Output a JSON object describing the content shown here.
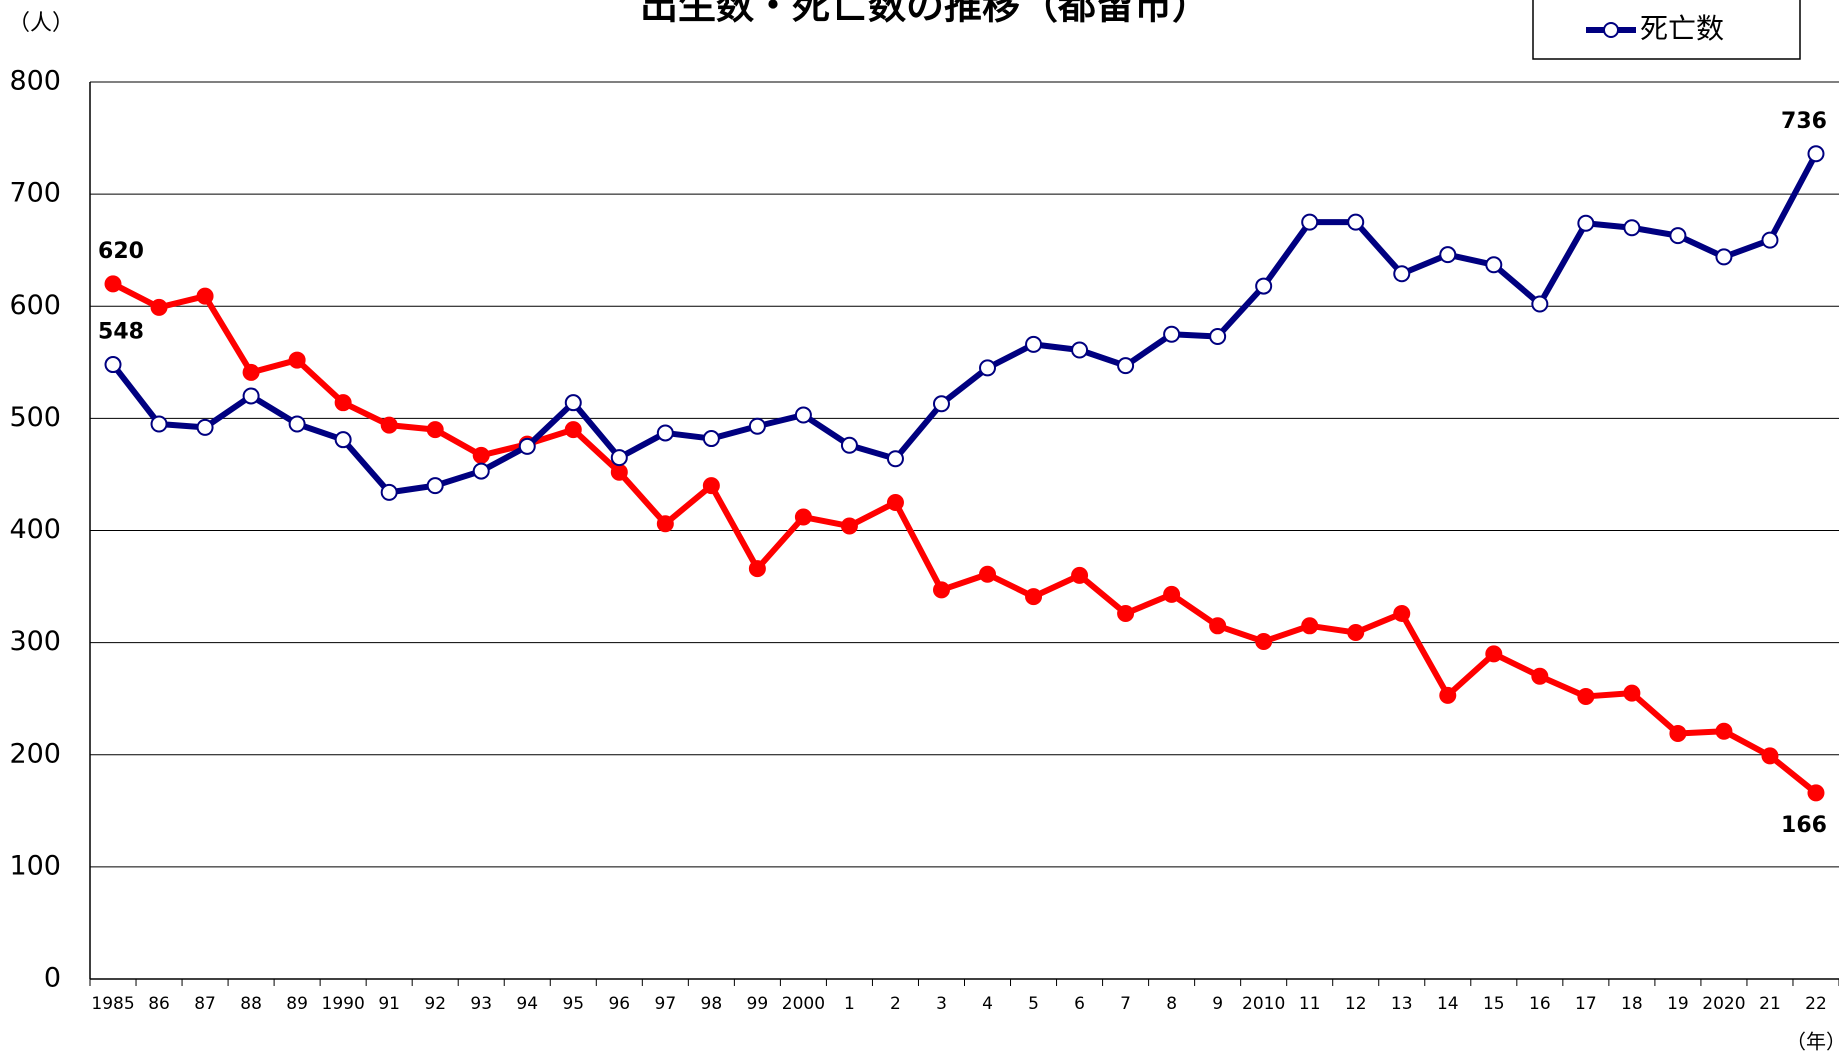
{
  "chart_data": {
    "type": "line",
    "title": "出生数・死亡数の推移（都留市）",
    "y_label": "（人）",
    "x_label": "（年）",
    "categories": [
      "1985",
      "86",
      "87",
      "88",
      "89",
      "1990",
      "91",
      "92",
      "93",
      "94",
      "95",
      "96",
      "97",
      "98",
      "99",
      "2000",
      "1",
      "2",
      "3",
      "4",
      "5",
      "6",
      "7",
      "8",
      "9",
      "2010",
      "11",
      "12",
      "13",
      "14",
      "15",
      "16",
      "17",
      "18",
      "19",
      "2020",
      "21",
      "22"
    ],
    "series": [
      {
        "name": "出生数",
        "color": "#ff0000",
        "marker_fill": "#ff0000",
        "values": [
          620,
          599,
          609,
          541,
          552,
          514,
          494,
          490,
          467,
          477,
          490,
          452,
          406,
          440,
          366,
          412,
          404,
          425,
          347,
          361,
          341,
          360,
          326,
          343,
          315,
          301,
          315,
          309,
          326,
          253,
          290,
          270,
          252,
          255,
          219,
          221,
          199,
          166
        ],
        "value_labels": [
          "620",
          null,
          null,
          null,
          null,
          null,
          null,
          null,
          null,
          null,
          null,
          null,
          null,
          null,
          null,
          null,
          null,
          null,
          null,
          null,
          null,
          null,
          null,
          null,
          null,
          null,
          null,
          null,
          null,
          null,
          null,
          null,
          null,
          null,
          null,
          null,
          null,
          "166"
        ]
      },
      {
        "name": "死亡数",
        "color": "#000080",
        "marker_fill": "#ffffff",
        "values": [
          548,
          495,
          492,
          520,
          495,
          481,
          434,
          440,
          453,
          475,
          514,
          465,
          487,
          482,
          493,
          503,
          476,
          464,
          513,
          545,
          566,
          561,
          547,
          575,
          573,
          618,
          675,
          675,
          629,
          646,
          637,
          602,
          674,
          670,
          663,
          644,
          659,
          736
        ],
        "value_labels": [
          "548",
          null,
          null,
          null,
          null,
          null,
          null,
          null,
          null,
          null,
          null,
          null,
          null,
          null,
          null,
          null,
          null,
          null,
          null,
          null,
          null,
          null,
          null,
          null,
          null,
          null,
          null,
          null,
          null,
          null,
          null,
          null,
          null,
          null,
          null,
          null,
          null,
          "736"
        ]
      }
    ],
    "ylim": [
      0,
      800
    ],
    "yticks": [
      0,
      100,
      200,
      300,
      400,
      500,
      600,
      700,
      800
    ],
    "grid": true,
    "legend": "top-right"
  }
}
